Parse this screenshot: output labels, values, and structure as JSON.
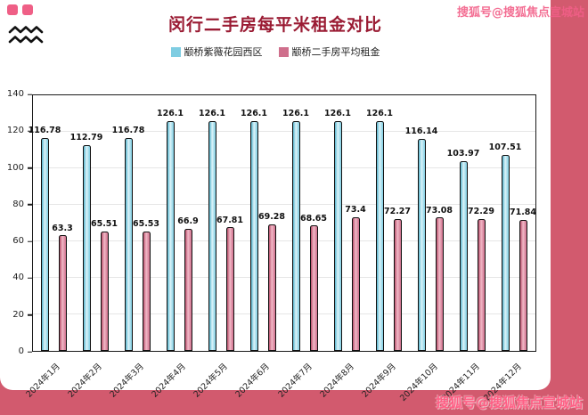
{
  "page": {
    "background_color": "#d25a6e",
    "card_color": "#ffffff"
  },
  "header": {
    "title": "闵行二手房每平米租金对比",
    "title_color": "#9a1b33"
  },
  "watermarks": {
    "top_right": "搜狐号@搜狐焦点宣城站",
    "bottom_right": "搜狐号@搜狐焦点宣城站",
    "color": "#f25f88"
  },
  "chart_data": {
    "type": "bar",
    "title": "闵行二手房每平米租金对比",
    "categories": [
      "2024年1月",
      "2024年2月",
      "2024年3月",
      "2024年4月",
      "2024年5月",
      "2024年6月",
      "2024年7月",
      "2024年8月",
      "2024年9月",
      "2024年10月",
      "2024年11月",
      "2024年12月"
    ],
    "series": [
      {
        "name": "颛桥紫薇花园西区",
        "color": "#7fcde2",
        "values": [
          116.78,
          112.79,
          116.78,
          126.1,
          126.1,
          126.1,
          126.1,
          126.1,
          126.1,
          116.14,
          103.97,
          107.51
        ]
      },
      {
        "name": "颛桥二手房平均租金",
        "color": "#cf6f8c",
        "values": [
          63.3,
          65.51,
          65.53,
          66.9,
          67.81,
          69.28,
          68.65,
          73.4,
          72.27,
          73.08,
          72.29,
          71.84
        ]
      }
    ],
    "ylim": [
      0,
      140
    ],
    "yticks": [
      0,
      20,
      40,
      60,
      80,
      100,
      120,
      140
    ],
    "grid": true,
    "legend_position": "top",
    "xlabel": "",
    "ylabel": ""
  }
}
